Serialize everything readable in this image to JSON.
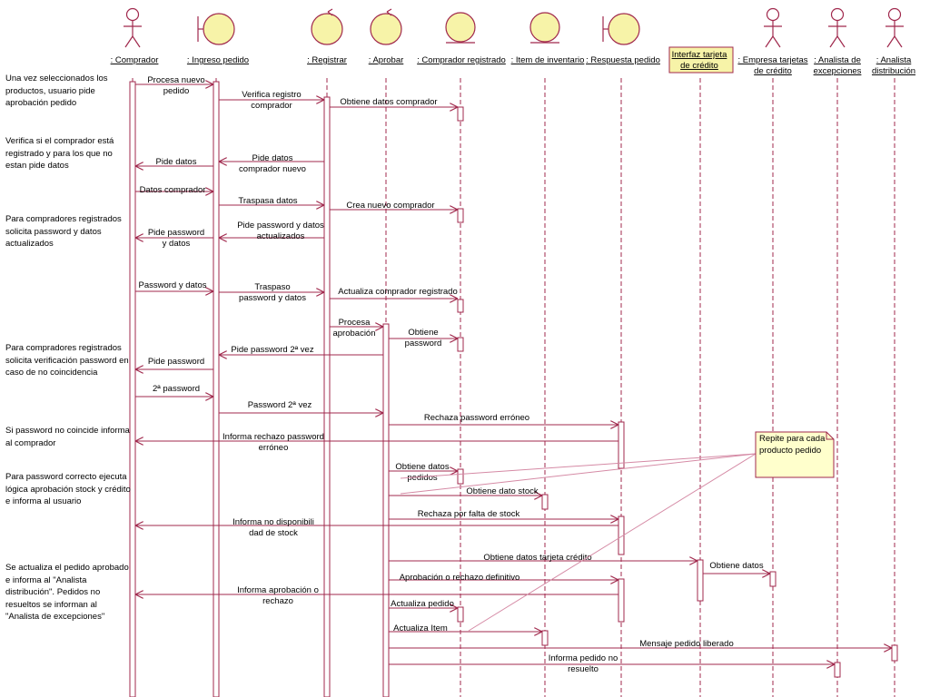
{
  "colors": {
    "line": "#a0284c",
    "object_fill": "#f7f3a8",
    "note_fill": "#ffffcc",
    "note_border": "#a0284c"
  },
  "lifelines": [
    {
      "id": "comprador",
      "type": "actor",
      "label": ": Comprador"
    },
    {
      "id": "ingreso",
      "type": "boundary",
      "label": ": Ingreso pedido"
    },
    {
      "id": "registrar",
      "type": "control",
      "label": ": Registrar"
    },
    {
      "id": "aprobar",
      "type": "control",
      "label": ": Aprobar"
    },
    {
      "id": "comp_reg",
      "type": "entity",
      "label": ": Comprador registrado"
    },
    {
      "id": "item",
      "type": "entity",
      "label": ": Item de inventario"
    },
    {
      "id": "respuesta",
      "type": "boundary",
      "label": ": Respuesta pedido"
    },
    {
      "id": "interfaz",
      "type": "interface",
      "label": "Interfaz tarjeta de crédito"
    },
    {
      "id": "empresa",
      "type": "actor",
      "label": ": Empresa tarjetas de crédito"
    },
    {
      "id": "analista_exc",
      "type": "actor",
      "label": ": Analista de excepciones"
    },
    {
      "id": "analista_dis",
      "type": "actor",
      "label": ": Analista distribución"
    }
  ],
  "messages": [
    {
      "from": "comprador",
      "to": "ingreso",
      "label": "Procesa nuevo pedido"
    },
    {
      "from": "ingreso",
      "to": "registrar",
      "label": "Verifica registro comprador"
    },
    {
      "from": "registrar",
      "to": "comp_reg",
      "label": "Obtiene datos comprador"
    },
    {
      "from": "registrar",
      "to": "ingreso",
      "label": "Pide datos comprador nuevo"
    },
    {
      "from": "ingreso",
      "to": "comprador",
      "label": "Pide datos"
    },
    {
      "from": "comprador",
      "to": "ingreso",
      "label": "Datos comprador"
    },
    {
      "from": "ingreso",
      "to": "registrar",
      "label": "Traspasa datos"
    },
    {
      "from": "registrar",
      "to": "comp_reg",
      "label": "Crea nuevo comprador"
    },
    {
      "from": "registrar",
      "to": "ingreso",
      "label": "Pide password y datos actualizados"
    },
    {
      "from": "ingreso",
      "to": "comprador",
      "label": "Pide password y datos"
    },
    {
      "from": "comprador",
      "to": "ingreso",
      "label": "Password y datos"
    },
    {
      "from": "ingreso",
      "to": "registrar",
      "label": "Traspaso password y datos"
    },
    {
      "from": "registrar",
      "to": "comp_reg",
      "label": "Actualiza comprador registrado"
    },
    {
      "from": "registrar",
      "to": "aprobar",
      "label": "Procesa aprobación"
    },
    {
      "from": "aprobar",
      "to": "comp_reg",
      "label": "Obtiene password"
    },
    {
      "from": "aprobar",
      "to": "ingreso",
      "label": "Pide password 2ª vez"
    },
    {
      "from": "ingreso",
      "to": "comprador",
      "label": "Pide password"
    },
    {
      "from": "comprador",
      "to": "ingreso",
      "label": "2ª password"
    },
    {
      "from": "ingreso",
      "to": "aprobar",
      "label": "Password 2ª vez"
    },
    {
      "from": "aprobar",
      "to": "respuesta",
      "label": "Rechaza password erróneo"
    },
    {
      "from": "respuesta",
      "to": "comprador",
      "label": "Informa rechazo password erróneo"
    },
    {
      "from": "aprobar",
      "to": "comp_reg",
      "label": "Obtiene datos pedidos"
    },
    {
      "from": "aprobar",
      "to": "item",
      "label": "Obtiene dato stock"
    },
    {
      "from": "aprobar",
      "to": "respuesta",
      "label": "Rechaza por falta de stock"
    },
    {
      "from": "respuesta",
      "to": "comprador",
      "label": "Informa no disponibilidad de stock"
    },
    {
      "from": "aprobar",
      "to": "interfaz",
      "label": "Obtiene datos tarjeta crédito"
    },
    {
      "from": "interfaz",
      "to": "empresa",
      "label": "Obtiene datos"
    },
    {
      "from": "aprobar",
      "to": "respuesta",
      "label": "Aprobación o rechazo definitivo"
    },
    {
      "from": "respuesta",
      "to": "comprador",
      "label": "Informa aprobación o rechazo"
    },
    {
      "from": "aprobar",
      "to": "comp_reg",
      "label": "Actualiza pedido"
    },
    {
      "from": "aprobar",
      "to": "item",
      "label": "Actualiza Item"
    },
    {
      "from": "aprobar",
      "to": "analista_dis",
      "label": "Mensaje pedido liberado"
    },
    {
      "from": "aprobar",
      "to": "analista_exc",
      "label": "Informa pedido no resuelto"
    }
  ],
  "side_notes": [
    "Una vez seleccionados los productos, usuario pide aprobación pedido",
    "Verifica si el comprador está registrado y para los que no estan pide datos",
    "Para compradores registrados solicita password y datos actualizados",
    "Para compradores registrados solicita verificación password en caso de no coincidencia",
    "Si password no coincide informa al comprador",
    "Para password correcto ejecuta lógica aprobación stock y crédito e informa al usuario",
    "Se actualiza el pedido aprobado e informa al \"Analista distribución\". Pedidos no resueltos se informan al \"Analista de excepciones\""
  ],
  "callout_note": "Repite para cada producto pedido"
}
